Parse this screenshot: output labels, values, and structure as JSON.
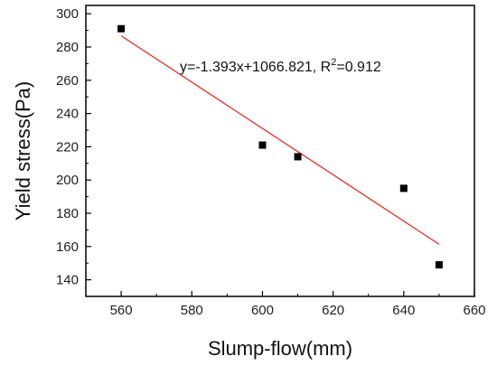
{
  "chart_data": {
    "type": "scatter",
    "xlabel": "Slump-flow(mm)",
    "ylabel": "Yield stress(Pa)",
    "xlim": [
      550,
      660
    ],
    "ylim": [
      130,
      305
    ],
    "x_ticks": [
      560,
      580,
      600,
      620,
      640,
      660
    ],
    "y_ticks": [
      140,
      160,
      180,
      200,
      220,
      240,
      260,
      280,
      300
    ],
    "x_tick_labels": [
      "560",
      "580",
      "600",
      "620",
      "640",
      "660"
    ],
    "y_tick_labels": [
      "140",
      "160",
      "180",
      "200",
      "220",
      "240",
      "260",
      "280",
      "300"
    ],
    "points": [
      {
        "x": 560,
        "y": 291
      },
      {
        "x": 600,
        "y": 221
      },
      {
        "x": 610,
        "y": 214
      },
      {
        "x": 640,
        "y": 195
      },
      {
        "x": 650,
        "y": 149
      }
    ],
    "fit_line": {
      "slope": -1.393,
      "intercept": 1066.821,
      "x_range": [
        560,
        650
      ]
    },
    "annotation": {
      "prefix": "y=-1.393x+1066.821, R",
      "sup": "2",
      "suffix": "=0.912"
    },
    "grid": false,
    "colors": {
      "marker": "#000000",
      "fit_line": "#e8221b",
      "axis": "#000000"
    }
  }
}
